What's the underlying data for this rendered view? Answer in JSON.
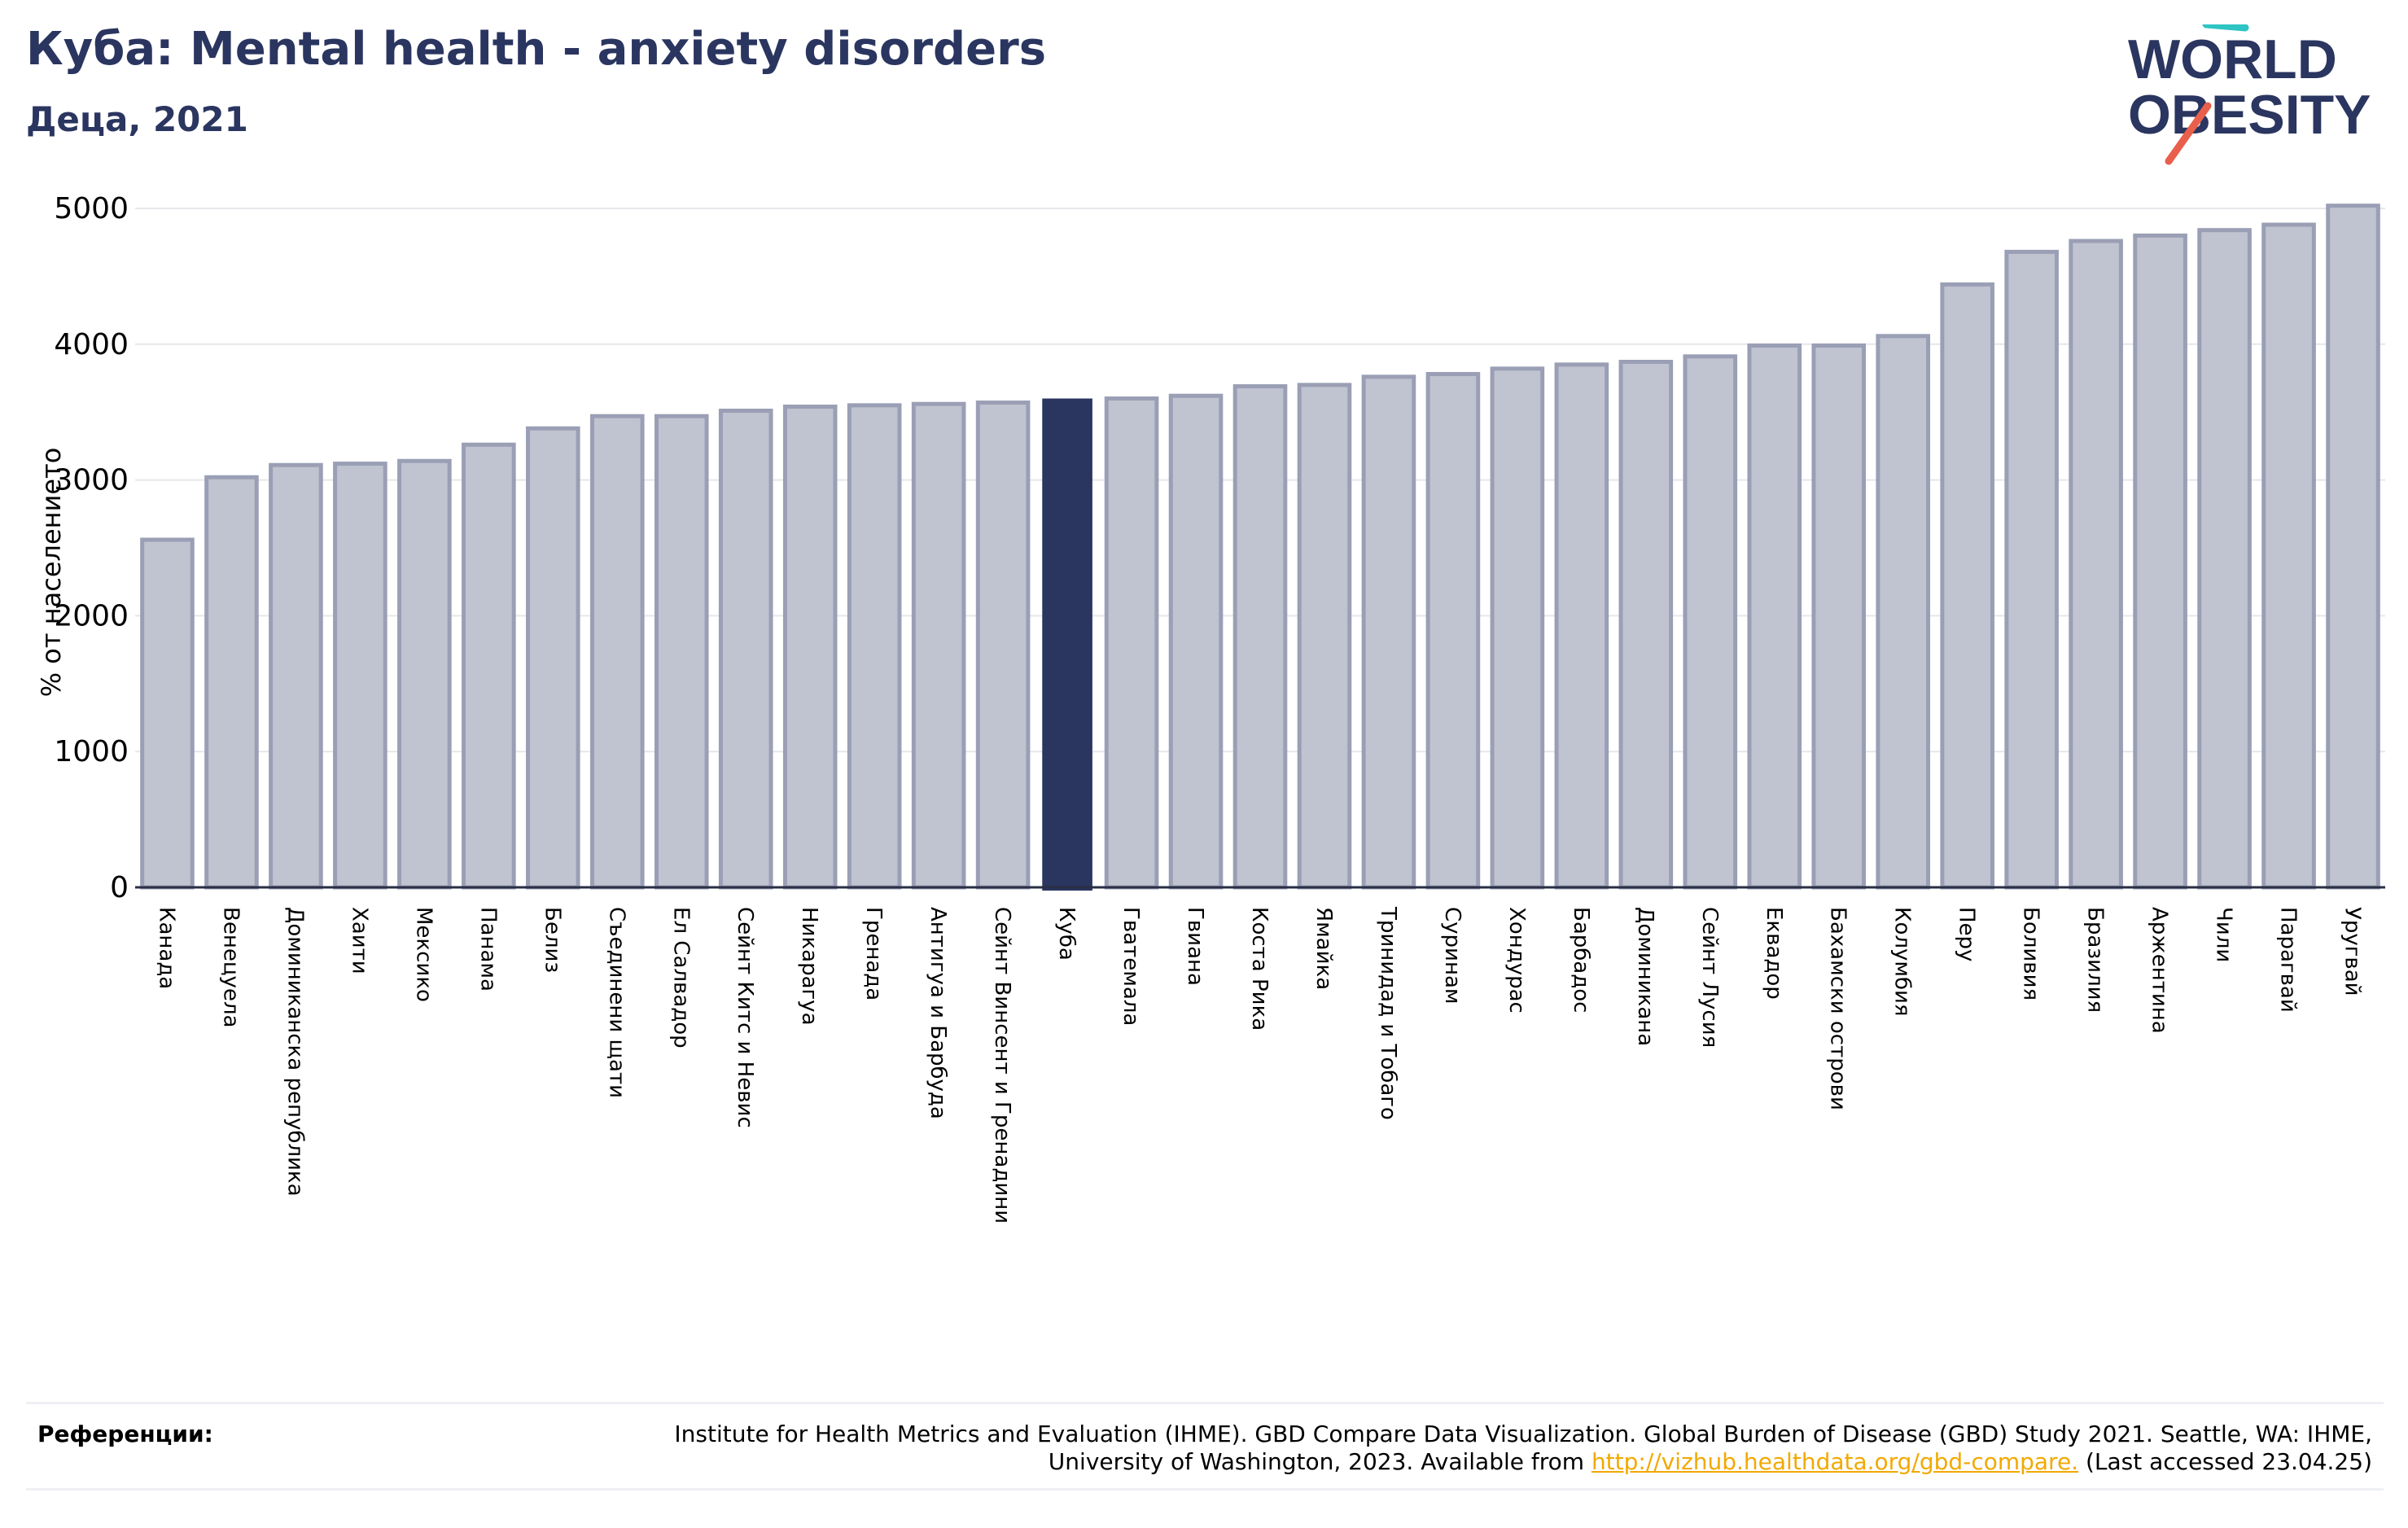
{
  "header": {
    "title": "Куба: Mental health - anxiety disorders",
    "subtitle": "Деца, 2021"
  },
  "logo": {
    "line1": "WORLD",
    "line2": "OBESITY"
  },
  "colors": {
    "bar": "#c0c3d0",
    "bar_border": "#9a9fb5",
    "highlight": "#2a3560",
    "text": "#2a3560",
    "grid": "#e6e7ec",
    "logo_teal": "#2ec4c4",
    "logo_red": "#e8604c",
    "link": "#f2a900"
  },
  "chart_data": {
    "type": "bar",
    "ylabel": "% от населението",
    "ylim": [
      0,
      5000
    ],
    "yticks": [
      0,
      1000,
      2000,
      3000,
      4000,
      5000
    ],
    "highlight": "Куба",
    "categories": [
      "Канада",
      "Венецуела",
      "Доминиканска република",
      "Хаити",
      "Мексико",
      "Панама",
      "Белиз",
      "Съединени щати",
      "Ел Салвадор",
      "Сейнт Китс и Невис",
      "Никарагуа",
      "Гренада",
      "Антигуа и Барбуда",
      "Сейнт Винсент и Гренадини",
      "Куба",
      "Гватемала",
      "Гвиана",
      "Коста Рика",
      "Ямайка",
      "Тринидад и Тобаго",
      "Суринам",
      "Хондурас",
      "Барбадос",
      "Доминикана",
      "Сейнт Лусия",
      "Еквадор",
      "Бахамски острови",
      "Колумбия",
      "Перу",
      "Боливия",
      "Бразилия",
      "Аржентина",
      "Чили",
      "Парагвай",
      "Уругвай"
    ],
    "values": [
      2560,
      3020,
      3110,
      3120,
      3140,
      3260,
      3380,
      3470,
      3470,
      3510,
      3540,
      3550,
      3560,
      3570,
      3600,
      3600,
      3620,
      3690,
      3700,
      3760,
      3780,
      3820,
      3850,
      3870,
      3910,
      3990,
      3990,
      4060,
      4440,
      4680,
      4760,
      4800,
      4840,
      4880,
      5020
    ]
  },
  "references": {
    "label": "Референции:",
    "text_before": "Institute for Health Metrics and Evaluation (IHME). GBD Compare Data Visualization. Global Burden of Disease (GBD) Study 2021. Seattle, WA: IHME, University of Washington, 2023. Available from ",
    "link": "http://vizhub.healthdata.org/gbd-compare.",
    "text_after": " (Last accessed 23.04.25)"
  }
}
